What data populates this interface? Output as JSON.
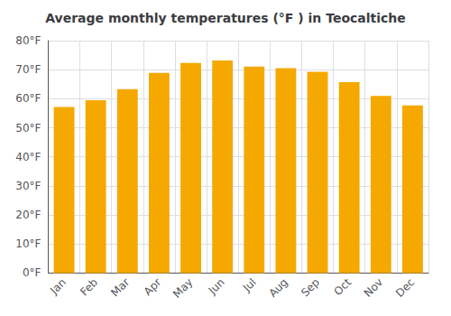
{
  "chart_data": {
    "type": "bar",
    "title": "Average monthly temperatures (°F ) in Teocaltiche",
    "categories": [
      "Jan",
      "Feb",
      "Mar",
      "Apr",
      "May",
      "Jun",
      "Jul",
      "Aug",
      "Sep",
      "Oct",
      "Nov",
      "Dec"
    ],
    "values": [
      57.2,
      59.5,
      63.3,
      68.9,
      72.3,
      73.2,
      71.1,
      70.5,
      69.3,
      65.7,
      61.0,
      57.7
    ],
    "color": "#F5A800",
    "ylim": [
      0,
      80
    ],
    "yticks": [
      {
        "value": 0,
        "label": "0°F"
      },
      {
        "value": 10,
        "label": "10°F"
      },
      {
        "value": 20,
        "label": "20°F"
      },
      {
        "value": 30,
        "label": "30°F"
      },
      {
        "value": 40,
        "label": "40°F"
      },
      {
        "value": 50,
        "label": "50°F"
      },
      {
        "value": 60,
        "label": "60°F"
      },
      {
        "value": 70,
        "label": "70°F"
      },
      {
        "value": 80,
        "label": "80°F"
      }
    ],
    "grid": true
  }
}
